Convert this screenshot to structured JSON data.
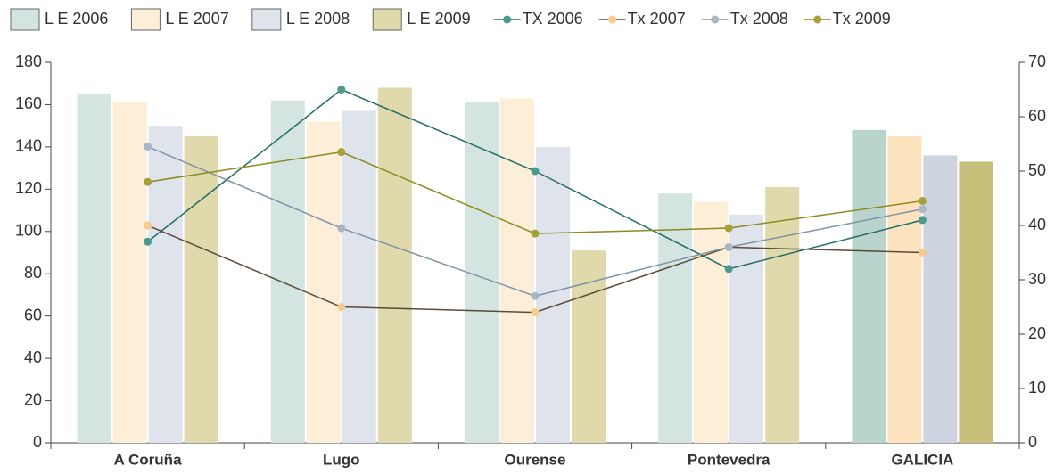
{
  "chart_data": {
    "type": "bar-line",
    "categories": [
      "A Coruña",
      "Lugo",
      "Ourense",
      "Pontevedra",
      "GALICIA"
    ],
    "series": [
      {
        "name": "L E 2006",
        "type": "bar",
        "colors": [
          "#d4e5e1",
          "#d4e5e1",
          "#d4e5e1",
          "#d4e5e1",
          "#b9d4cd"
        ],
        "values": [
          165,
          162,
          161,
          118,
          148
        ]
      },
      {
        "name": "L E 2007",
        "type": "bar",
        "colors": [
          "#fdeed7",
          "#fdeed7",
          "#fdeed7",
          "#fdeed7",
          "#fde3bd"
        ],
        "values": [
          161,
          152,
          163,
          114,
          145
        ]
      },
      {
        "name": "L E 2008",
        "type": "bar",
        "colors": [
          "#dfe3ec",
          "#dfe3ec",
          "#dfe3ec",
          "#dfe3ec",
          "#cdd3df"
        ],
        "values": [
          150,
          157,
          140,
          108,
          136
        ]
      },
      {
        "name": "L E 2009",
        "type": "bar",
        "colors": [
          "#dfd9ab",
          "#dfd9ab",
          "#dfd9ab",
          "#dfd9ab",
          "#c8c07a"
        ],
        "values": [
          145,
          168,
          91,
          121,
          133
        ]
      },
      {
        "name": "TX 2006",
        "type": "line",
        "axis": "y2",
        "color": "#1f6e66",
        "marker_color": "#4a9a8e",
        "values": [
          37,
          65,
          50,
          32,
          41
        ]
      },
      {
        "name": "Tx 2007",
        "type": "line",
        "axis": "y2",
        "color": "#5b4a3a",
        "marker_color": "#f6c98c",
        "values": [
          40,
          25,
          24,
          36,
          35
        ]
      },
      {
        "name": "Tx 2008",
        "type": "line",
        "axis": "y2",
        "color": "#7d93a6",
        "marker_color": "#a9b6c6",
        "values": [
          54.5,
          39.5,
          27,
          36,
          43
        ]
      },
      {
        "name": "Tx 2009",
        "type": "line",
        "axis": "y2",
        "color": "#8a8a1e",
        "marker_color": "#a6a03a",
        "values": [
          48,
          53.5,
          38.5,
          39.5,
          44.5
        ]
      }
    ],
    "ylim": [
      0,
      180
    ],
    "yticks": [
      0,
      20,
      40,
      60,
      80,
      100,
      120,
      140,
      160,
      180
    ],
    "y2lim": [
      0,
      70
    ],
    "y2ticks": [
      0,
      10,
      20,
      30,
      40,
      50,
      60,
      70
    ]
  }
}
